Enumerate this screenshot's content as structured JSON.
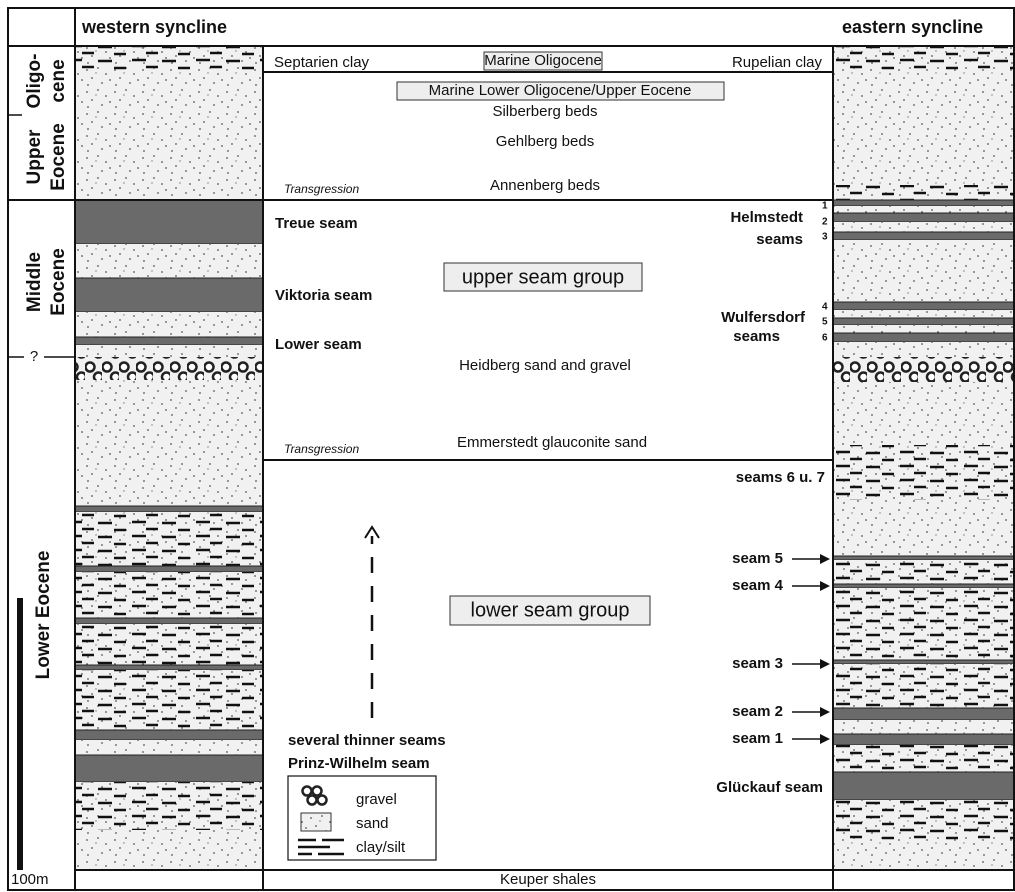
{
  "header": {
    "west": "western syncline",
    "east": "eastern syncline"
  },
  "epochs": {
    "oligocene": [
      "Oligo-",
      "cene"
    ],
    "upper_eocene": [
      "Upper",
      "Eocene"
    ],
    "middle_eocene": [
      "Middle",
      "Eocene"
    ],
    "lower_eocene": "Lower Eocene",
    "uncertain": "?",
    "scale": "100m"
  },
  "center": {
    "septarien": "Septarien clay",
    "marine_oligocene": "Marine Oligocene",
    "rupelian": "Rupelian clay",
    "marine_lower": "Marine Lower Oligocene/Upper Eocene",
    "silberberg": "Silberberg beds",
    "gehlberg": "Gehlberg beds",
    "transgression_upper": "Transgression",
    "annenberg": "Annenberg beds",
    "treue": "Treue seam",
    "upper_group": "upper seam group",
    "viktoria": "Viktoria seam",
    "lower_seam": "Lower seam",
    "heidberg": "Heidberg sand and gravel",
    "transgression_lower": "Transgression",
    "emmerstedt": "Emmerstedt glauconite sand",
    "lower_group": "lower seam group",
    "thinner": "several thinner seams",
    "prinz": "Prinz-Wilhelm seam",
    "keuper": "Keuper shales"
  },
  "east_labels": {
    "helmstedt": [
      "Helmstedt",
      "seams"
    ],
    "helmstedt_numbers": [
      "1",
      "2",
      "3"
    ],
    "wulfersdorf": [
      "Wulfersdorf",
      "seams"
    ],
    "wulfersdorf_numbers": [
      "4",
      "5",
      "6"
    ],
    "seams_6_7": "seams 6 u. 7",
    "seam5": "seam 5",
    "seam4": "seam 4",
    "seam3": "seam 3",
    "seam2": "seam 2",
    "seam1": "seam 1",
    "glueckauf": "Glückauf seam"
  },
  "legend": {
    "gravel": "gravel",
    "sand": "sand",
    "clay": "clay/silt"
  }
}
